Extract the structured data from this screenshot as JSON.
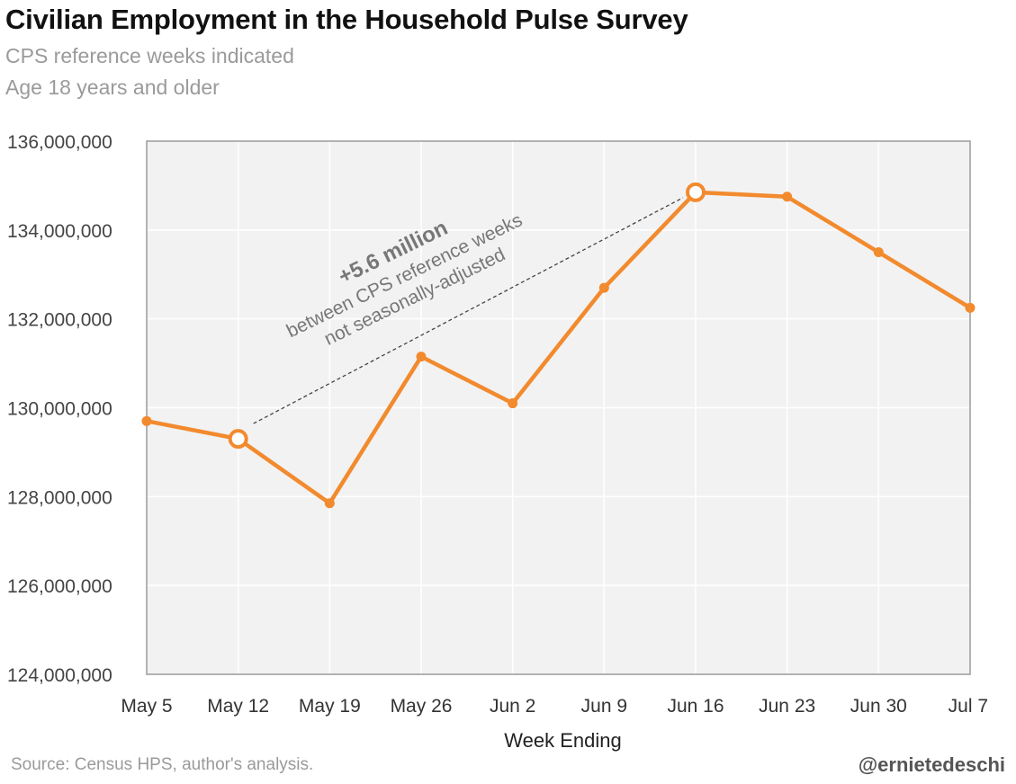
{
  "header": {
    "title": "Civilian Employment in the Household Pulse Survey",
    "subtitle_1": "CPS reference weeks indicated",
    "subtitle_2": "Age 18 years and older"
  },
  "footer": {
    "source": "Source: Census HPS, author's analysis.",
    "handle": "@ernietedeschi"
  },
  "colors": {
    "series": "#f28a2e",
    "plot_bg": "#f2f2f2",
    "grid": "#ffffff",
    "annotation": "#777777"
  },
  "chart_data": {
    "type": "line",
    "title": "Civilian Employment in the Household Pulse Survey",
    "subtitle": [
      "CPS reference weeks indicated",
      "Age 18 years and older"
    ],
    "xlabel": "Week Ending",
    "ylabel": "",
    "categories": [
      "May 5",
      "May 12",
      "May 19",
      "May 26",
      "Jun 2",
      "Jun 9",
      "Jun 16",
      "Jun 23",
      "Jun 30",
      "Jul 7"
    ],
    "values": [
      129700000,
      129300000,
      127850000,
      131150000,
      130100000,
      132700000,
      134850000,
      134750000,
      133500000,
      132250000
    ],
    "highlighted": [
      "May 12",
      "Jun 16"
    ],
    "ylim": [
      124000000,
      136000000
    ],
    "yticks": [
      124000000,
      126000000,
      128000000,
      130000000,
      132000000,
      134000000,
      136000000
    ],
    "ytick_labels": [
      "124,000,000",
      "126,000,000",
      "128,000,000",
      "130,000,000",
      "132,000,000",
      "134,000,000",
      "136,000,000"
    ],
    "grid": true,
    "annotation": {
      "from": "May 12",
      "to": "Jun 16",
      "headline": "+5.6 million",
      "line1": "between CPS reference weeks",
      "line2": "not seasonally-adjusted"
    }
  }
}
